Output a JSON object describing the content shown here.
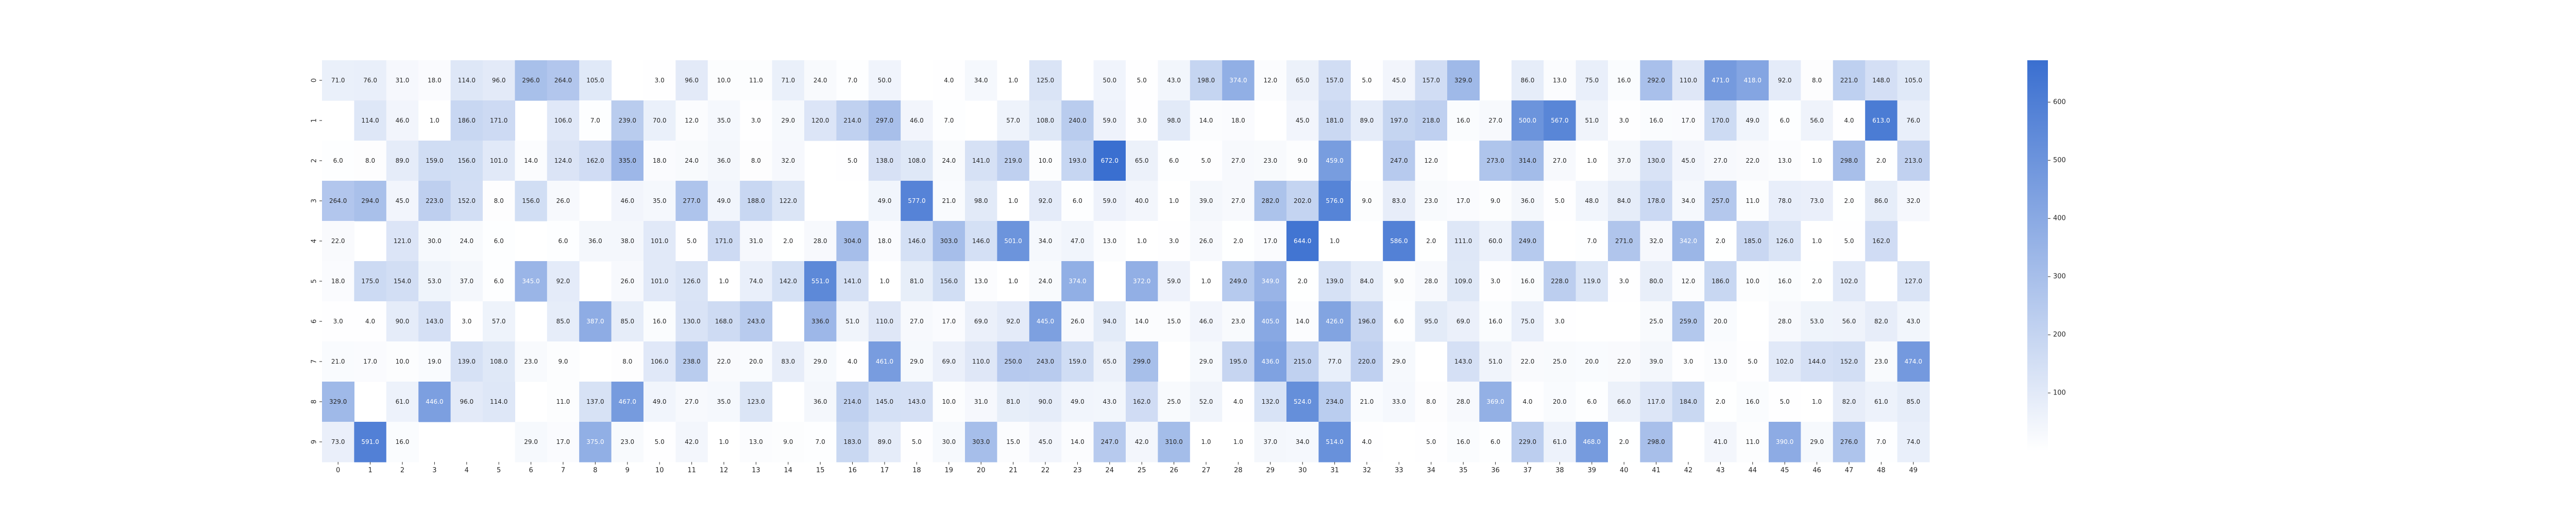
{
  "chart_data": {
    "type": "heatmap",
    "title": "",
    "xlabel": "",
    "ylabel": "",
    "x_labels": [
      "0",
      "1",
      "2",
      "3",
      "4",
      "5",
      "6",
      "7",
      "8",
      "9",
      "10",
      "11",
      "12",
      "13",
      "14",
      "15",
      "16",
      "17",
      "18",
      "19",
      "20",
      "21",
      "22",
      "23",
      "24",
      "25",
      "26",
      "27",
      "28",
      "29",
      "30",
      "31",
      "32",
      "33",
      "34",
      "35",
      "36",
      "37",
      "38",
      "39",
      "40",
      "41",
      "42",
      "43",
      "44",
      "45",
      "46",
      "47",
      "48",
      "49"
    ],
    "y_labels": [
      "0",
      "1",
      "2",
      "3",
      "4",
      "5",
      "6",
      "7",
      "8",
      "9"
    ],
    "value_range": [
      0,
      672
    ],
    "colorbar_ticks": [
      100,
      200,
      300,
      400,
      500,
      600
    ],
    "colors": {
      "low": "#ffffff",
      "high": "#3a6fd0",
      "dark_text": "#262626",
      "light_text": "#ffffff"
    },
    "values": [
      [
        71.0,
        76.0,
        31.0,
        18.0,
        114.0,
        96.0,
        296.0,
        264.0,
        105.0,
        null,
        3.0,
        96.0,
        10.0,
        11.0,
        71.0,
        24.0,
        7.0,
        50.0,
        null,
        4.0,
        34.0,
        1.0,
        125.0,
        null,
        50.0,
        5.0,
        43.0,
        198.0,
        374.0,
        12.0,
        65.0,
        157.0,
        5.0,
        45.0,
        157.0,
        329.0,
        null,
        86.0,
        13.0,
        75.0,
        16.0,
        292.0,
        110.0,
        471.0,
        418.0,
        92.0,
        8.0,
        221.0,
        148.0,
        105.0
      ],
      [
        null,
        114.0,
        46.0,
        1.0,
        186.0,
        171.0,
        null,
        106.0,
        7.0,
        239.0,
        70.0,
        12.0,
        35.0,
        3.0,
        29.0,
        120.0,
        214.0,
        297.0,
        46.0,
        7.0,
        null,
        57.0,
        108.0,
        240.0,
        59.0,
        3.0,
        98.0,
        14.0,
        18.0,
        null,
        45.0,
        181.0,
        89.0,
        197.0,
        218.0,
        16.0,
        27.0,
        500.0,
        567.0,
        51.0,
        3.0,
        16.0,
        17.0,
        170.0,
        49.0,
        6.0,
        56.0,
        4.0,
        613.0,
        76.0
      ],
      [
        6.0,
        8.0,
        89.0,
        159.0,
        156.0,
        101.0,
        14.0,
        124.0,
        162.0,
        335.0,
        18.0,
        24.0,
        36.0,
        8.0,
        32.0,
        null,
        5.0,
        138.0,
        108.0,
        24.0,
        141.0,
        219.0,
        10.0,
        193.0,
        672.0,
        65.0,
        6.0,
        5.0,
        27.0,
        23.0,
        9.0,
        459.0,
        null,
        247.0,
        12.0,
        null,
        273.0,
        314.0,
        27.0,
        1.0,
        37.0,
        130.0,
        45.0,
        27.0,
        22.0,
        13.0,
        1.0,
        298.0,
        2.0,
        213.0
      ],
      [
        264.0,
        294.0,
        45.0,
        223.0,
        152.0,
        8.0,
        156.0,
        26.0,
        null,
        46.0,
        35.0,
        277.0,
        49.0,
        188.0,
        122.0,
        null,
        null,
        49.0,
        577.0,
        21.0,
        98.0,
        1.0,
        92.0,
        6.0,
        59.0,
        40.0,
        1.0,
        39.0,
        27.0,
        282.0,
        202.0,
        576.0,
        9.0,
        83.0,
        23.0,
        17.0,
        9.0,
        36.0,
        5.0,
        48.0,
        84.0,
        178.0,
        34.0,
        257.0,
        11.0,
        78.0,
        73.0,
        2.0,
        86.0,
        32.0
      ],
      [
        22.0,
        null,
        121.0,
        30.0,
        24.0,
        6.0,
        null,
        6.0,
        36.0,
        38.0,
        101.0,
        5.0,
        171.0,
        31.0,
        2.0,
        28.0,
        304.0,
        18.0,
        146.0,
        303.0,
        146.0,
        501.0,
        34.0,
        47.0,
        13.0,
        1.0,
        3.0,
        26.0,
        2.0,
        17.0,
        644.0,
        1.0,
        null,
        586.0,
        2.0,
        111.0,
        60.0,
        249.0,
        null,
        7.0,
        271.0,
        32.0,
        342.0,
        2.0,
        185.0,
        126.0,
        1.0,
        5.0,
        162.0,
        null
      ],
      [
        18.0,
        175.0,
        154.0,
        53.0,
        37.0,
        6.0,
        345.0,
        92.0,
        null,
        26.0,
        101.0,
        126.0,
        1.0,
        74.0,
        142.0,
        551.0,
        141.0,
        1.0,
        81.0,
        156.0,
        13.0,
        1.0,
        24.0,
        374.0,
        null,
        372.0,
        59.0,
        1.0,
        249.0,
        349.0,
        2.0,
        139.0,
        84.0,
        9.0,
        28.0,
        109.0,
        3.0,
        16.0,
        228.0,
        119.0,
        3.0,
        80.0,
        12.0,
        186.0,
        10.0,
        16.0,
        2.0,
        102.0,
        null,
        127.0
      ],
      [
        3.0,
        4.0,
        90.0,
        143.0,
        3.0,
        57.0,
        null,
        85.0,
        387.0,
        85.0,
        16.0,
        130.0,
        168.0,
        243.0,
        null,
        336.0,
        51.0,
        110.0,
        27.0,
        17.0,
        69.0,
        92.0,
        445.0,
        26.0,
        94.0,
        14.0,
        15.0,
        46.0,
        23.0,
        405.0,
        14.0,
        426.0,
        196.0,
        6.0,
        95.0,
        69.0,
        16.0,
        75.0,
        3.0,
        null,
        null,
        25.0,
        259.0,
        20.0,
        null,
        28.0,
        53.0,
        56.0,
        82.0,
        43.0
      ],
      [
        21.0,
        17.0,
        10.0,
        19.0,
        139.0,
        108.0,
        23.0,
        9.0,
        null,
        8.0,
        106.0,
        238.0,
        22.0,
        20.0,
        83.0,
        29.0,
        4.0,
        461.0,
        29.0,
        69.0,
        110.0,
        250.0,
        243.0,
        159.0,
        65.0,
        299.0,
        null,
        29.0,
        195.0,
        436.0,
        215.0,
        77.0,
        220.0,
        29.0,
        null,
        143.0,
        51.0,
        22.0,
        25.0,
        20.0,
        22.0,
        39.0,
        3.0,
        13.0,
        5.0,
        102.0,
        144.0,
        152.0,
        23.0,
        474.0
      ],
      [
        329.0,
        null,
        61.0,
        446.0,
        96.0,
        114.0,
        null,
        11.0,
        137.0,
        467.0,
        49.0,
        27.0,
        35.0,
        123.0,
        null,
        36.0,
        214.0,
        145.0,
        143.0,
        10.0,
        31.0,
        81.0,
        90.0,
        49.0,
        43.0,
        162.0,
        25.0,
        52.0,
        4.0,
        132.0,
        524.0,
        234.0,
        21.0,
        33.0,
        8.0,
        28.0,
        369.0,
        4.0,
        20.0,
        6.0,
        66.0,
        117.0,
        184.0,
        2.0,
        16.0,
        5.0,
        1.0,
        82.0,
        61.0,
        85.0
      ],
      [
        73.0,
        591.0,
        16.0,
        null,
        null,
        null,
        29.0,
        17.0,
        375.0,
        23.0,
        5.0,
        42.0,
        1.0,
        13.0,
        9.0,
        7.0,
        183.0,
        89.0,
        5.0,
        30.0,
        303.0,
        15.0,
        45.0,
        14.0,
        247.0,
        42.0,
        310.0,
        1.0,
        1.0,
        37.0,
        34.0,
        514.0,
        4.0,
        null,
        5.0,
        16.0,
        6.0,
        229.0,
        61.0,
        468.0,
        2.0,
        298.0,
        null,
        41.0,
        11.0,
        390.0,
        29.0,
        276.0,
        7.0,
        74.0
      ]
    ]
  }
}
